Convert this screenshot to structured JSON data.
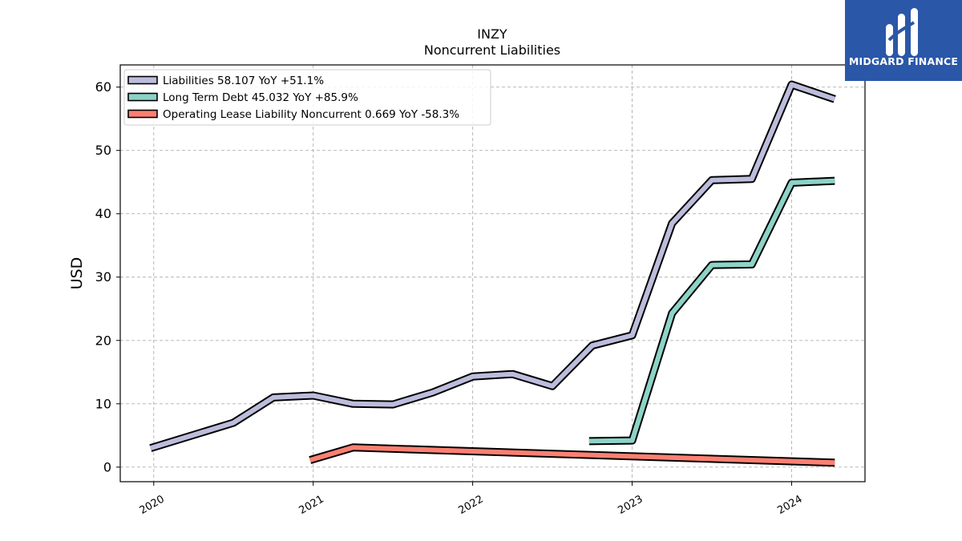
{
  "chart_data": {
    "type": "line",
    "title": "INZY",
    "subtitle": "Noncurrent  Liabilities",
    "ylabel": "USD",
    "xlabel": "",
    "xlim": [
      2019.79,
      2024.46
    ],
    "ylim": [
      -2.3,
      63.5
    ],
    "x_ticks": [
      2020,
      2021,
      2022,
      2023,
      2024
    ],
    "x_tick_labels": [
      "2020",
      "2021",
      "2022",
      "2023",
      "2024"
    ],
    "y_ticks": [
      0,
      10,
      20,
      30,
      40,
      50,
      60
    ],
    "y_tick_labels": [
      "0",
      "10",
      "20",
      "30",
      "40",
      "50",
      "60"
    ],
    "grid": true,
    "legend_position": "top-left",
    "series": [
      {
        "name": "Liabilities  58.107 YoY +51.1%",
        "color": "#bcbddc",
        "x": [
          2019.98,
          2020.5,
          2020.75,
          2021.0,
          2021.25,
          2021.5,
          2021.75,
          2022.0,
          2022.25,
          2022.5,
          2022.75,
          2023.0,
          2023.25,
          2023.5,
          2023.75,
          2024.0,
          2024.27
        ],
        "y": [
          3.0,
          7.0,
          11.0,
          11.3,
          10.0,
          9.9,
          11.8,
          14.3,
          14.7,
          12.8,
          19.2,
          20.8,
          38.5,
          45.3,
          45.5,
          60.4,
          58.1
        ]
      },
      {
        "name": "Long Term Debt  45.032 YoY +85.9%",
        "color": "#8dd3c7",
        "x": [
          2022.73,
          2023.0,
          2023.25,
          2023.5,
          2023.75,
          2024.0,
          2024.27
        ],
        "y": [
          4.1,
          4.2,
          24.3,
          31.9,
          32.0,
          44.9,
          45.2
        ]
      },
      {
        "name": "Operating Lease Liability Noncurrent  0.669 YoY -58.3%",
        "color": "#fb8072",
        "x": [
          2020.98,
          2021.25,
          2024.27
        ],
        "y": [
          1.1,
          3.1,
          0.7
        ]
      }
    ]
  },
  "logo": {
    "text": "MIDGARD FINANCE",
    "color": "#2a57a8"
  }
}
